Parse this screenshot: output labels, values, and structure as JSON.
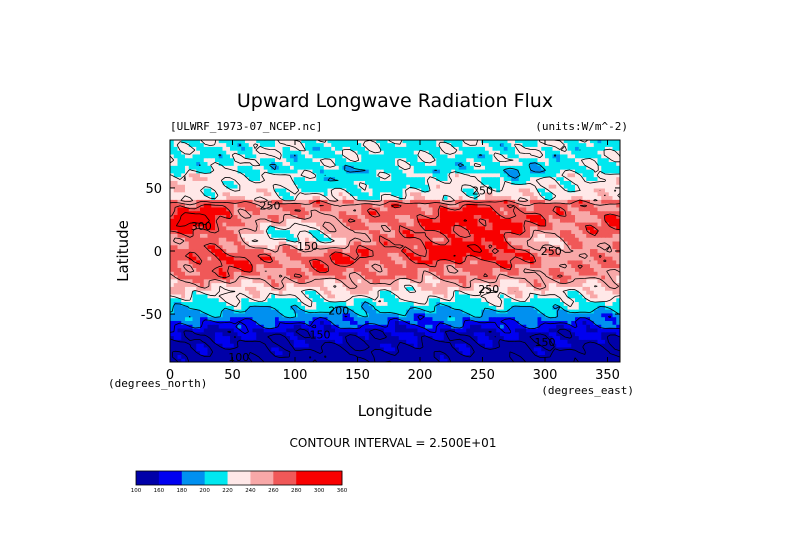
{
  "chart_data": {
    "type": "heatmap",
    "title": "Upward Longwave Radiation Flux",
    "file_label": "[ULWRF_1973-07_NCEP.nc]",
    "units_label": "(units:W/m^-2)",
    "xlabel": "Longitude",
    "ylabel": "Latitude",
    "x_unit_label": "(degrees_east)",
    "y_unit_label": "(degrees_north)",
    "xlim": [
      0,
      360
    ],
    "ylim": [
      -88,
      88
    ],
    "x_ticks": [
      0,
      50,
      100,
      150,
      200,
      250,
      300,
      350
    ],
    "y_ticks": [
      -50,
      0,
      50
    ],
    "contour_interval_text": "CONTOUR INTERVAL = 2.500E+01",
    "colorbar": {
      "levels": [
        100,
        160,
        180,
        200,
        220,
        240,
        260,
        280,
        300,
        360
      ],
      "colors": [
        "#0000a8",
        "#0000f0",
        "#0090f0",
        "#00e8f0",
        "#ffe8e8",
        "#f8a8a8",
        "#f05858",
        "#f80000",
        "#f80000"
      ]
    },
    "contour_labels": [
      {
        "lon": 25,
        "lat": 20,
        "value": "300"
      },
      {
        "lon": 80,
        "lat": 36,
        "value": "250"
      },
      {
        "lon": 110,
        "lat": 4,
        "value": "150"
      },
      {
        "lon": 135,
        "lat": -47,
        "value": "200"
      },
      {
        "lon": 120,
        "lat": -66,
        "value": "150"
      },
      {
        "lon": 55,
        "lat": -84,
        "value": "100"
      },
      {
        "lon": 250,
        "lat": 48,
        "value": "250"
      },
      {
        "lon": 255,
        "lat": -30,
        "value": "250"
      },
      {
        "lon": 305,
        "lat": 0,
        "value": "250"
      },
      {
        "lon": 300,
        "lat": -72,
        "value": "150"
      }
    ]
  }
}
